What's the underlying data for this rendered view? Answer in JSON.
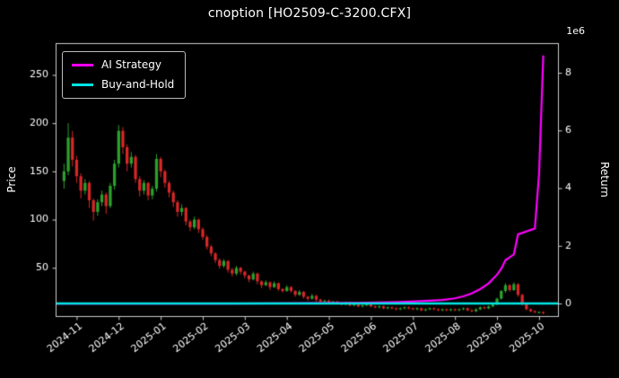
{
  "title": "cnoption [HO2509-C-3200.CFX]",
  "colors": {
    "background": "#000000",
    "text": "#ffffff",
    "spine": "#cccccc"
  },
  "chart_data": {
    "type": "candlestick",
    "x_tick_labels": [
      "2024-11",
      "2024-12",
      "2025-01",
      "2025-02",
      "2025-03",
      "2025-04",
      "2025-05",
      "2025-06",
      "2025-07",
      "2025-08",
      "2025-09",
      "2025-10"
    ],
    "x_tick_positions": [
      3,
      13,
      23,
      33,
      43,
      53,
      63,
      73,
      83,
      93,
      103,
      113
    ],
    "x_range": [
      -2,
      117.5
    ],
    "price_axis": {
      "label": "Price",
      "ticks": [
        50,
        100,
        150,
        200,
        250
      ],
      "lim": [
        0,
        283
      ]
    },
    "return_axis": {
      "label": "Return",
      "ticks": [
        0,
        2,
        4,
        6,
        8
      ],
      "scale": 1000000,
      "offset_label": "1e6",
      "lim": [
        -435000,
        9030000
      ]
    },
    "candle_colors": {
      "up": "#2ca02c",
      "down": "#d62728"
    },
    "candles": [
      [
        140,
        158,
        132,
        150
      ],
      [
        150,
        200,
        146,
        185
      ],
      [
        185,
        192,
        155,
        162
      ],
      [
        162,
        166,
        138,
        145
      ],
      [
        145,
        148,
        122,
        130
      ],
      [
        130,
        142,
        126,
        138
      ],
      [
        138,
        140,
        112,
        120
      ],
      [
        120,
        122,
        99,
        108
      ],
      [
        108,
        121,
        104,
        118
      ],
      [
        118,
        130,
        114,
        126
      ],
      [
        126,
        128,
        106,
        114
      ],
      [
        114,
        138,
        112,
        135
      ],
      [
        135,
        162,
        131,
        158
      ],
      [
        158,
        198,
        154,
        192
      ],
      [
        192,
        196,
        168,
        175
      ],
      [
        175,
        178,
        150,
        158
      ],
      [
        158,
        170,
        154,
        165
      ],
      [
        165,
        167,
        138,
        142
      ],
      [
        142,
        145,
        124,
        130
      ],
      [
        130,
        141,
        126,
        138
      ],
      [
        138,
        139,
        120,
        125
      ],
      [
        125,
        135,
        121,
        132
      ],
      [
        132,
        168,
        129,
        163
      ],
      [
        163,
        165,
        144,
        150
      ],
      [
        150,
        152,
        133,
        138
      ],
      [
        138,
        140,
        123,
        128
      ],
      [
        128,
        130,
        113,
        118
      ],
      [
        118,
        120,
        103,
        108
      ],
      [
        108,
        116,
        104,
        112
      ],
      [
        112,
        113,
        94,
        98
      ],
      [
        98,
        100,
        88,
        92
      ],
      [
        92,
        103,
        90,
        100
      ],
      [
        100,
        101,
        86,
        90
      ],
      [
        90,
        92,
        79,
        82
      ],
      [
        82,
        84,
        69,
        72
      ],
      [
        72,
        74,
        62,
        65
      ],
      [
        65,
        66,
        55,
        58
      ],
      [
        58,
        60,
        49,
        52
      ],
      [
        52,
        59,
        50,
        57
      ],
      [
        57,
        58,
        45,
        48
      ],
      [
        48,
        50,
        41,
        44
      ],
      [
        44,
        52,
        42,
        50
      ],
      [
        50,
        51,
        43,
        46
      ],
      [
        46,
        47,
        39,
        42
      ],
      [
        42,
        43,
        35,
        38
      ],
      [
        38,
        46,
        37,
        44
      ],
      [
        44,
        45,
        33,
        36
      ],
      [
        36,
        37,
        29,
        32
      ],
      [
        32,
        37,
        31,
        35
      ],
      [
        35,
        36,
        27,
        30
      ],
      [
        30,
        36,
        29,
        34
      ],
      [
        34,
        35,
        26,
        28
      ],
      [
        28,
        29,
        24,
        26
      ],
      [
        26,
        32,
        25,
        30
      ],
      [
        30,
        31,
        24,
        26
      ],
      [
        26,
        27,
        20,
        22
      ],
      [
        22,
        27,
        21,
        25
      ],
      [
        25,
        26,
        18,
        20
      ],
      [
        20,
        21,
        16,
        18
      ],
      [
        18,
        23,
        17,
        21
      ],
      [
        21,
        22,
        15,
        17
      ],
      [
        17,
        18,
        13,
        15
      ],
      [
        15,
        17,
        14,
        16
      ],
      [
        16,
        17,
        12,
        14
      ],
      [
        14,
        16,
        13,
        15
      ],
      [
        15,
        16,
        12,
        13
      ],
      [
        13,
        14,
        11,
        12
      ],
      [
        12,
        15,
        11,
        14
      ],
      [
        14,
        15,
        10,
        11
      ],
      [
        11,
        13,
        10,
        12
      ],
      [
        12,
        13,
        9,
        10
      ],
      [
        10,
        12,
        9,
        11
      ],
      [
        11,
        13,
        10,
        12
      ],
      [
        12,
        13,
        9,
        10
      ],
      [
        10,
        11,
        8,
        9
      ],
      [
        9,
        11,
        8,
        10
      ],
      [
        10,
        11,
        7,
        8
      ],
      [
        8,
        10,
        7,
        9
      ],
      [
        9,
        10,
        7,
        8
      ],
      [
        8,
        9,
        6,
        7
      ],
      [
        7,
        9,
        6,
        8
      ],
      [
        8,
        10,
        7,
        9
      ],
      [
        9,
        10,
        7,
        8
      ],
      [
        8,
        9,
        6,
        7
      ],
      [
        7,
        9,
        6,
        8
      ],
      [
        8,
        9,
        5,
        6
      ],
      [
        6,
        8,
        5,
        7
      ],
      [
        7,
        9,
        6,
        8
      ],
      [
        8,
        9,
        6,
        7
      ],
      [
        7,
        8,
        5,
        6
      ],
      [
        6,
        8,
        5,
        7
      ],
      [
        7,
        8,
        5,
        6
      ],
      [
        6,
        8,
        5,
        7
      ],
      [
        7,
        8,
        5,
        6
      ],
      [
        6,
        8,
        5,
        7
      ],
      [
        7,
        9,
        6,
        8
      ],
      [
        8,
        9,
        5,
        6
      ],
      [
        6,
        7,
        4,
        5
      ],
      [
        5,
        8,
        4,
        7
      ],
      [
        7,
        10,
        6,
        9
      ],
      [
        9,
        10,
        7,
        8
      ],
      [
        8,
        11,
        7,
        10
      ],
      [
        10,
        13,
        9,
        12
      ],
      [
        12,
        19,
        11,
        18
      ],
      [
        18,
        27,
        17,
        26
      ],
      [
        26,
        34,
        24,
        32
      ],
      [
        32,
        33,
        25,
        27
      ],
      [
        27,
        35,
        26,
        33
      ],
      [
        33,
        34,
        20,
        22
      ],
      [
        22,
        23,
        11,
        12
      ],
      [
        12,
        13,
        6,
        7
      ],
      [
        7,
        8,
        4,
        5
      ],
      [
        5,
        6,
        3,
        4
      ],
      [
        4,
        5,
        3,
        4
      ],
      [
        4,
        5,
        2,
        3
      ]
    ],
    "series": [
      {
        "name": "AI Strategy",
        "color": "#ff00ff",
        "width": 2.2,
        "axis": "return",
        "points": [
          [
            -2,
            0
          ],
          [
            40,
            0
          ],
          [
            60,
            10000
          ],
          [
            70,
            20000
          ],
          [
            80,
            50000
          ],
          [
            85,
            80000
          ],
          [
            90,
            120000
          ],
          [
            93,
            180000
          ],
          [
            95,
            250000
          ],
          [
            97,
            350000
          ],
          [
            99,
            500000
          ],
          [
            101,
            700000
          ],
          [
            102,
            850000
          ],
          [
            103,
            1000000
          ],
          [
            104,
            1200000
          ],
          [
            105,
            1500000
          ],
          [
            106,
            1600000
          ],
          [
            107,
            1700000
          ],
          [
            108,
            2400000
          ],
          [
            109,
            2450000
          ],
          [
            110,
            2500000
          ],
          [
            111,
            2550000
          ],
          [
            112,
            2600000
          ],
          [
            113,
            4500000
          ],
          [
            114,
            8600000
          ]
        ]
      },
      {
        "name": "Buy-and-Hold",
        "color": "#00e5e5",
        "width": 2.6,
        "axis": "return",
        "points": [
          [
            -2,
            0
          ],
          [
            117.5,
            0
          ]
        ]
      }
    ]
  }
}
